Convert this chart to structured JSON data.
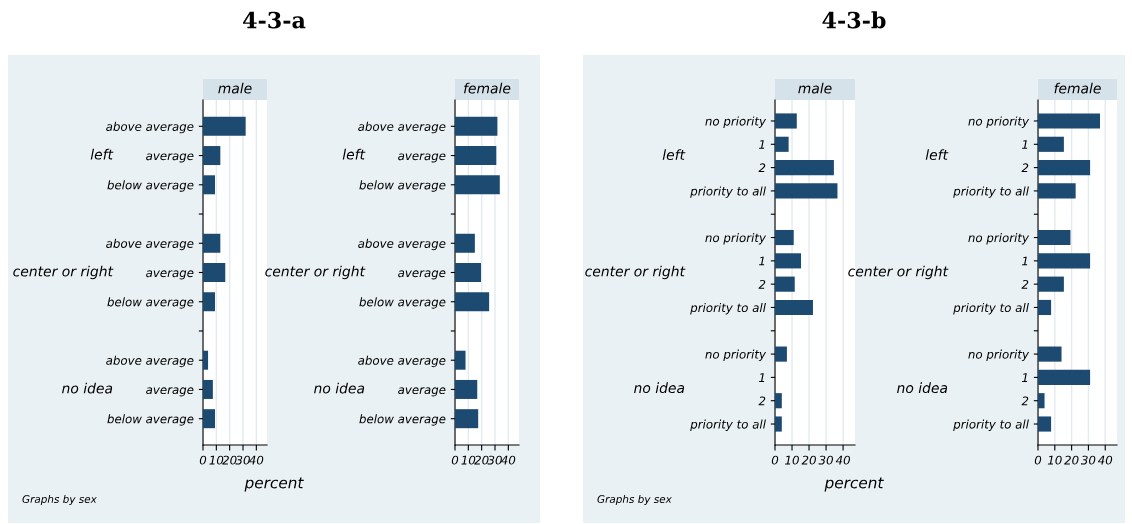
{
  "chart_data": [
    {
      "type": "bar",
      "orientation": "horizontal",
      "title": "4-3-a",
      "subtitle": "male",
      "xlabel": "percent",
      "annotations": [
        "left",
        "center or right",
        "no idea",
        "Graphs by sex"
      ],
      "categories": [
        "above average",
        "average",
        "below average",
        null,
        "above average",
        "average",
        "below average",
        null,
        "above average",
        "average",
        "below average"
      ],
      "values": [
        32,
        13,
        9,
        null,
        13,
        16.7,
        9,
        null,
        3.8,
        7.4,
        9
      ],
      "color": "#1d4a70",
      "xlim": [
        0,
        48
      ],
      "xticks": [
        0,
        10,
        20,
        30,
        40
      ],
      "grid": "x"
    },
    {
      "type": "bar",
      "orientation": "horizontal",
      "subtitle": "female",
      "annotations": [
        "left",
        "center or right",
        "no idea"
      ],
      "categories": [
        "above average",
        "average",
        "below average",
        null,
        "above average",
        "average",
        "below average",
        null,
        "above average",
        "average",
        "below average"
      ],
      "values": [
        31.8,
        31,
        33.6,
        null,
        14.9,
        19.5,
        25.6,
        null,
        7.9,
        16.7,
        17.4
      ],
      "color": "#1d4a70",
      "xlim": [
        0,
        48
      ],
      "xticks": [
        0,
        10,
        20,
        30,
        40
      ],
      "grid": "x"
    },
    {
      "type": "bar",
      "orientation": "horizontal",
      "title": "4-3-b",
      "subtitle": "male",
      "xlabel": "percent",
      "annotations": [
        "left",
        "center or right",
        "no idea",
        "Graphs by sex"
      ],
      "categories": [
        "no priority",
        "1",
        "2",
        "priority to all",
        null,
        "no priority",
        "1",
        "2",
        "priority to all",
        null,
        "no priority",
        "1",
        "2",
        "priority to all"
      ],
      "values": [
        12.8,
        8,
        34.6,
        36.7,
        null,
        11,
        15.3,
        11.6,
        22.3,
        null,
        7,
        0,
        4,
        4
      ],
      "color": "#1d4a70",
      "xlim": [
        0,
        47
      ],
      "xticks": [
        0,
        10,
        20,
        30,
        40
      ],
      "grid": "x"
    },
    {
      "type": "bar",
      "orientation": "horizontal",
      "subtitle": "female",
      "annotations": [
        "left",
        "center or right",
        "no idea"
      ],
      "categories": [
        "no priority",
        "1",
        "2",
        "priority to all",
        null,
        "no priority",
        "1",
        "2",
        "priority to all",
        null,
        "no priority",
        "1",
        "2",
        "priority to all"
      ],
      "values": [
        36.9,
        15.4,
        31,
        22.4,
        null,
        19.3,
        31,
        15.4,
        7.8,
        null,
        14,
        31,
        3.9,
        7.8
      ],
      "color": "#1d4a70",
      "xlim": [
        0,
        47
      ],
      "xticks": [
        0,
        10,
        20,
        30,
        40
      ],
      "grid": "x"
    }
  ]
}
